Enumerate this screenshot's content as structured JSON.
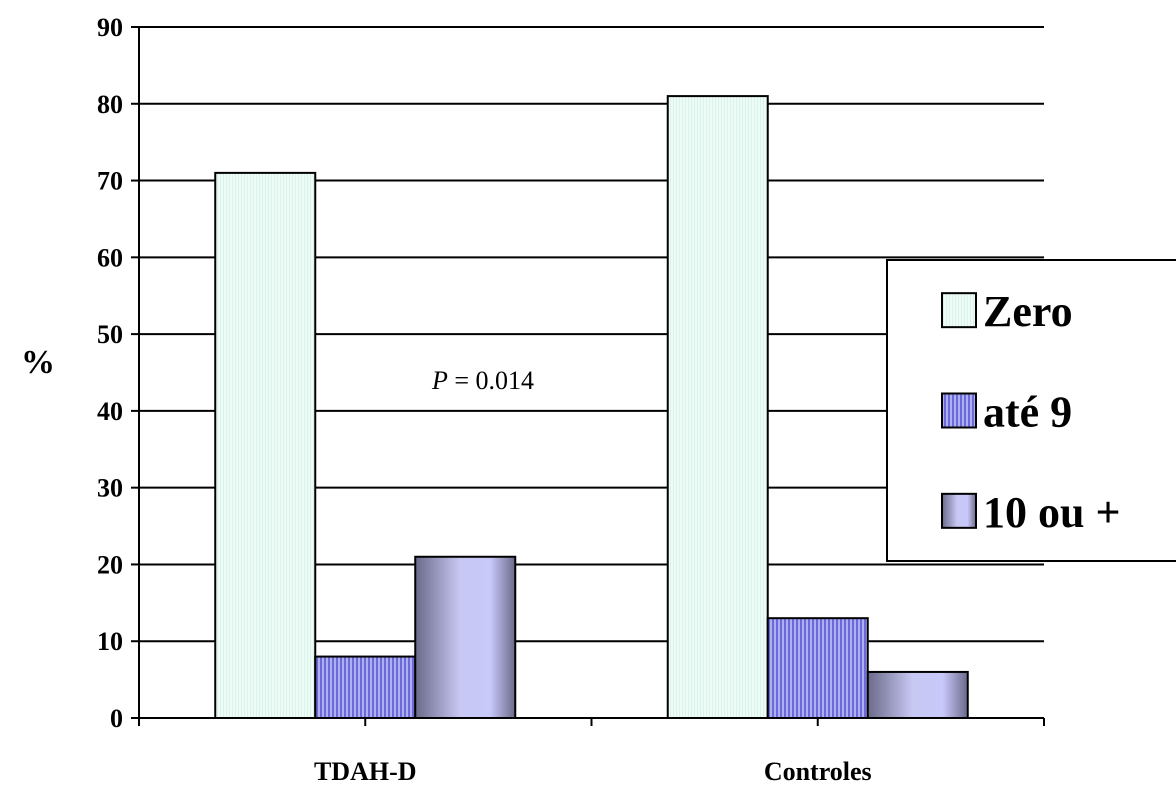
{
  "chart_data": {
    "type": "bar",
    "categories": [
      "TDAH-D",
      "Controles"
    ],
    "series": [
      {
        "name": "Zero",
        "values": [
          71,
          81
        ],
        "color": "#ecfdf6"
      },
      {
        "name": "até 9",
        "values": [
          8,
          13
        ],
        "color": "#8c8ce6"
      },
      {
        "name": "10 ou +",
        "values": [
          21,
          6
        ],
        "color": "#c8c8f8"
      }
    ],
    "xlabel": "",
    "ylabel": "%",
    "ylim": [
      0,
      90
    ],
    "yticks": [
      0,
      10,
      20,
      30,
      40,
      50,
      60,
      70,
      80,
      90
    ],
    "grid": true,
    "legend_position": "right",
    "annotation": {
      "italic": "P",
      "text": " = 0.014"
    }
  }
}
